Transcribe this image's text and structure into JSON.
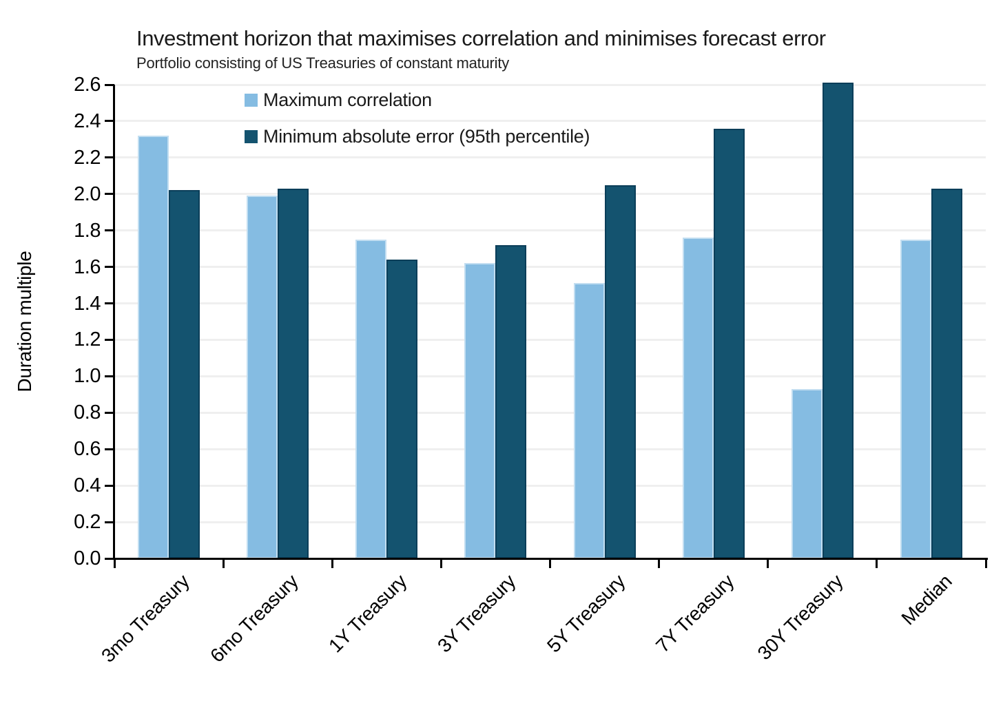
{
  "header": {
    "title": "Investment horizon that maximises correlation and minimises forecast error",
    "subtitle": "Portfolio consisting of US Treasuries of constant maturity"
  },
  "chart_data": {
    "type": "bar",
    "title": "Investment horizon that maximises correlation and minimises forecast error",
    "subtitle": "Portfolio consisting of US Treasuries of constant maturity",
    "xlabel": "",
    "ylabel": "Duration multiple",
    "ylim": [
      0.0,
      2.6
    ],
    "ytick_step": 0.2,
    "y_tick_labels": [
      "0.0",
      "0.2",
      "0.4",
      "0.6",
      "0.8",
      "1.0",
      "1.2",
      "1.4",
      "1.6",
      "1.8",
      "2.0",
      "2.2",
      "2.4",
      "2.6"
    ],
    "grid": "horizontal",
    "legend_position": "inside-top-left",
    "categories": [
      "3mo Treasury",
      "6mo Treasury",
      "1Y Treasury",
      "3Y Treasury",
      "5Y Treasury",
      "7Y Treasury",
      "30Y Treasury",
      "Median"
    ],
    "series": [
      {
        "name": "Maximum correlation",
        "color": "#85bce2",
        "edge_color": "rgba(255,255,255,0.5)",
        "values": [
          2.32,
          1.99,
          1.75,
          1.62,
          1.51,
          1.76,
          0.93,
          1.75
        ]
      },
      {
        "name": "Minimum absolute error (95th percentile)",
        "color": "#14536f",
        "edge_color": "#0b3e59",
        "values": [
          2.02,
          2.03,
          1.64,
          1.72,
          2.05,
          2.36,
          2.61,
          2.03
        ]
      }
    ],
    "colors": {
      "gridline": "#efefef",
      "axis": "#000000",
      "text": "#1a1a1a"
    }
  }
}
